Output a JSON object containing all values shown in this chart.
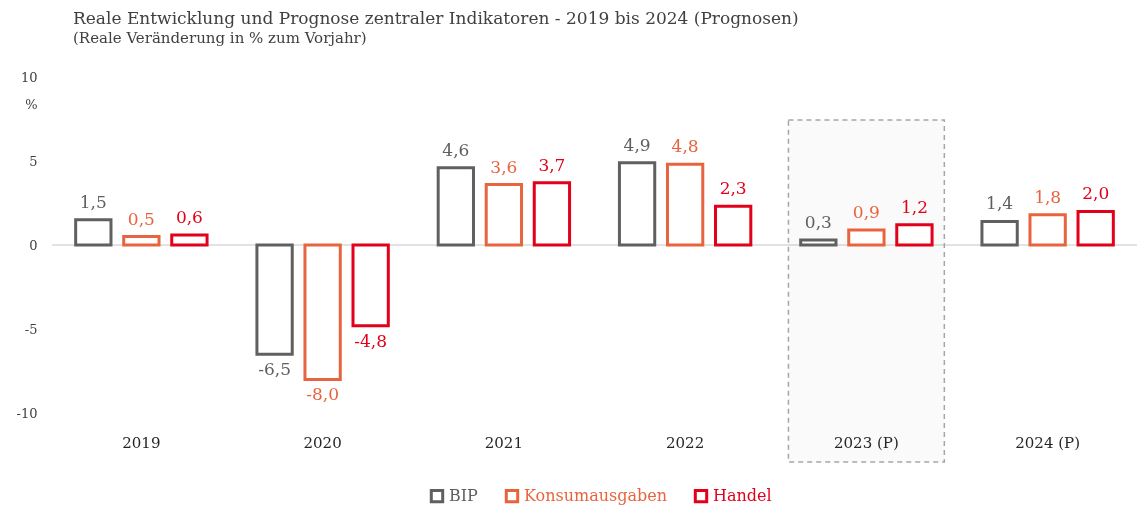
{
  "chart_data": {
    "type": "bar",
    "title": "Reale Entwicklung und Prognose zentraler Indikatoren - 2019 bis 2024 (Prognosen)",
    "subtitle": "(Reale Veränderung in % zum Vorjahr)",
    "ylabel": "%",
    "categories": [
      "2019",
      "2020",
      "2021",
      "2022",
      "2023 (P)",
      "2024 (P)"
    ],
    "series": [
      {
        "name": "BIP",
        "color": "#606060",
        "values": [
          1.5,
          -6.5,
          4.6,
          4.9,
          0.3,
          1.4
        ],
        "value_labels": [
          "1,5",
          "-6,5",
          "4,6",
          "4,9",
          "0,3",
          "1,4"
        ]
      },
      {
        "name": "Konsumausgaben",
        "color": "#e8643f",
        "values": [
          0.5,
          -8.0,
          3.6,
          4.8,
          0.9,
          1.8
        ],
        "value_labels": [
          "0,5",
          "-8,0",
          "3,6",
          "4,8",
          "0,9",
          "1,8"
        ]
      },
      {
        "name": "Handel",
        "color": "#e2001a",
        "values": [
          0.6,
          -4.8,
          3.7,
          2.3,
          1.2,
          2.0
        ],
        "value_labels": [
          "0,6",
          "-4,8",
          "3,7",
          "2,3",
          "1,2",
          "2,0"
        ]
      }
    ],
    "ylim": [
      -10,
      10
    ],
    "yticks": [
      -10,
      -5,
      0,
      5,
      10
    ],
    "grid": false,
    "legend": "bottom",
    "ref_lines": [
      {
        "axis": "y",
        "value": 0,
        "color": "#d9d9d9"
      }
    ],
    "bands": [
      {
        "axis": "x",
        "from": "2023 (P)",
        "to": "2023 (P)",
        "color": "#a6a6a6"
      }
    ]
  }
}
